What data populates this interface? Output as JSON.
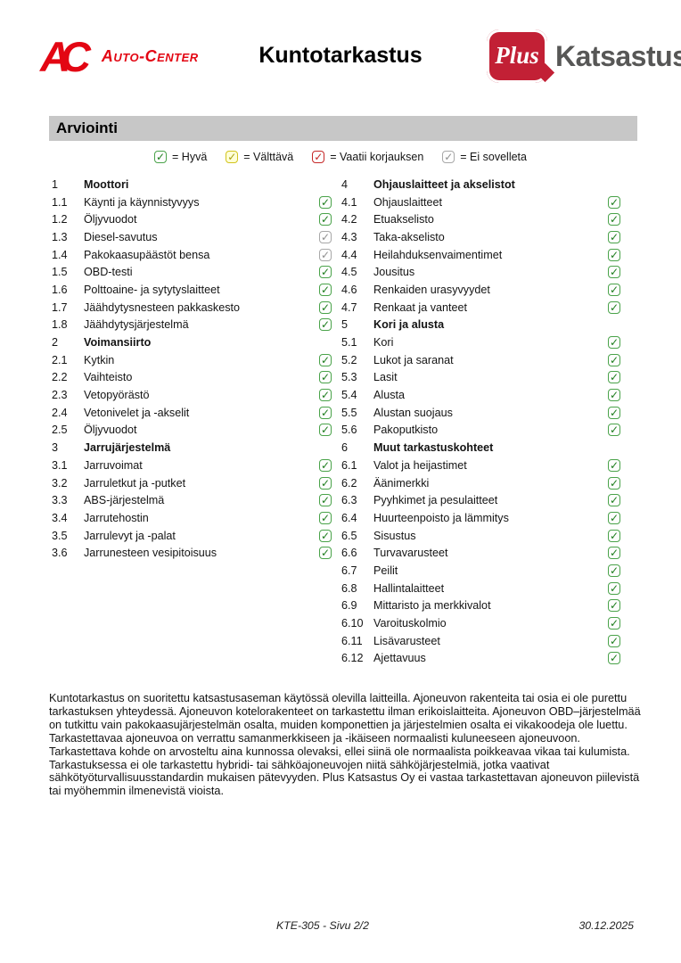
{
  "header": {
    "logo_ac": {
      "monogram": "AC",
      "name": "Auto-Center"
    },
    "title": "Kuntotarkastus",
    "logo_plus": {
      "plus": "Plus",
      "name": "Katsastus"
    }
  },
  "section_title": "Arviointi",
  "icons": {
    "check": "✓"
  },
  "legend": [
    {
      "status": "good",
      "label": "= Hyvä"
    },
    {
      "status": "fair",
      "label": "= Välttävä"
    },
    {
      "status": "repair",
      "label": "= Vaatii korjauksen"
    },
    {
      "status": "na",
      "label": "= Ei sovelleta"
    }
  ],
  "colors": {
    "brand_red": "#e30613",
    "plus_red": "#c22035",
    "katsastus_gray": "#575756",
    "section_bar": "#c7c7c7",
    "good": "#1e7d1e",
    "good_border": "#4aa34a",
    "fair": "#a8a012",
    "fair_border": "#d2c41d",
    "fair_bg": "#ffffd6",
    "repair": "#c62828",
    "na": "#8f8f8f",
    "na_border": "#a8a8a8"
  },
  "checklist": {
    "left": [
      {
        "num": "1",
        "label": "Moottori",
        "type": "section"
      },
      {
        "num": "1.1",
        "label": "Käynti ja käynnistyvyys",
        "status": "good"
      },
      {
        "num": "1.2",
        "label": "Öljyvuodot",
        "status": "good"
      },
      {
        "num": "1.3",
        "label": "Diesel-savutus",
        "status": "na"
      },
      {
        "num": "1.4",
        "label": "Pakokaasupäästöt bensa",
        "status": "na"
      },
      {
        "num": "1.5",
        "label": "OBD-testi",
        "status": "good"
      },
      {
        "num": "1.6",
        "label": "Polttoaine- ja sytytyslaitteet",
        "status": "good"
      },
      {
        "num": "1.7",
        "label": "Jäähdytysnesteen pakkaskesto",
        "status": "good"
      },
      {
        "num": "1.8",
        "label": "Jäähdytysjärjestelmä",
        "status": "good"
      },
      {
        "num": "2",
        "label": "Voimansiirto",
        "type": "section"
      },
      {
        "num": "2.1",
        "label": "Kytkin",
        "status": "good"
      },
      {
        "num": "2.2",
        "label": "Vaihteisto",
        "status": "good"
      },
      {
        "num": "2.3",
        "label": "Vetopyörästö",
        "status": "good"
      },
      {
        "num": "2.4",
        "label": "Vetonivelet ja -akselit",
        "status": "good"
      },
      {
        "num": "2.5",
        "label": "Öljyvuodot",
        "status": "good"
      },
      {
        "num": "3",
        "label": "Jarrujärjestelmä",
        "type": "section"
      },
      {
        "num": "3.1",
        "label": "Jarruvoimat",
        "status": "good"
      },
      {
        "num": "3.2",
        "label": "Jarruletkut ja -putket",
        "status": "good"
      },
      {
        "num": "3.3",
        "label": "ABS-järjestelmä",
        "status": "good"
      },
      {
        "num": "3.4",
        "label": "Jarrutehostin",
        "status": "good"
      },
      {
        "num": "3.5",
        "label": "Jarrulevyt ja -palat",
        "status": "good"
      },
      {
        "num": "3.6",
        "label": "Jarrunesteen vesipitoisuus",
        "status": "good"
      }
    ],
    "right": [
      {
        "num": "4",
        "label": "Ohjauslaitteet ja akselistot",
        "type": "section"
      },
      {
        "num": "4.1",
        "label": "Ohjauslaitteet",
        "status": "good"
      },
      {
        "num": "4.2",
        "label": "Etuakselisto",
        "status": "good"
      },
      {
        "num": "4.3",
        "label": "Taka-akselisto",
        "status": "good"
      },
      {
        "num": "4.4",
        "label": "Heilahduksenvaimentimet",
        "status": "good"
      },
      {
        "num": "4.5",
        "label": "Jousitus",
        "status": "good"
      },
      {
        "num": "4.6",
        "label": "Renkaiden urasyvyydet",
        "status": "good"
      },
      {
        "num": "4.7",
        "label": "Renkaat ja vanteet",
        "status": "good"
      },
      {
        "num": "5",
        "label": "Kori ja alusta",
        "type": "section"
      },
      {
        "num": "5.1",
        "label": "Kori",
        "status": "good"
      },
      {
        "num": "5.2",
        "label": "Lukot ja saranat",
        "status": "good"
      },
      {
        "num": "5.3",
        "label": "Lasit",
        "status": "good"
      },
      {
        "num": "5.4",
        "label": "Alusta",
        "status": "good"
      },
      {
        "num": "5.5",
        "label": "Alustan suojaus",
        "status": "good"
      },
      {
        "num": "5.6",
        "label": "Pakoputkisto",
        "status": "good"
      },
      {
        "num": "6",
        "label": "Muut tarkastuskohteet",
        "type": "section"
      },
      {
        "num": "6.1",
        "label": "Valot ja heijastimet",
        "status": "good"
      },
      {
        "num": "6.2",
        "label": "Äänimerkki",
        "status": "good"
      },
      {
        "num": "6.3",
        "label": "Pyyhkimet ja pesulaitteet",
        "status": "good"
      },
      {
        "num": "6.4",
        "label": "Huurteenpoisto ja lämmitys",
        "status": "good"
      },
      {
        "num": "6.5",
        "label": "Sisustus",
        "status": "good"
      },
      {
        "num": "6.6",
        "label": "Turvavarusteet",
        "status": "good"
      },
      {
        "num": "6.7",
        "label": "Peilit",
        "status": "good"
      },
      {
        "num": "6.8",
        "label": "Hallintalaitteet",
        "status": "good"
      },
      {
        "num": "6.9",
        "label": "Mittaristo ja merkkivalot",
        "status": "good"
      },
      {
        "num": "6.10",
        "label": "Varoituskolmio",
        "status": "good"
      },
      {
        "num": "6.11",
        "label": "Lisävarusteet",
        "status": "good"
      },
      {
        "num": "6.12",
        "label": "Ajettavuus",
        "status": "good"
      }
    ]
  },
  "disclaimer": "Kuntotarkastus on suoritettu katsastusaseman käytössä olevilla laitteilla. Ajoneuvon rakenteita tai osia ei ole purettu tarkastuksen yhteydessä. Ajoneuvon kotelorakenteet on tarkastettu ilman erikoislaitteita. Ajoneuvon OBD–järjestelmää on tutkittu vain pakokaasujärjestelmän osalta, muiden komponettien ja järjestelmien osalta ei vikakoodeja ole luettu. Tarkastettavaa ajoneuvoa on verrattu samanmerkkiseen ja -ikäiseen normaalisti kuluneeseen ajoneuvoon. Tarkastettava kohde on arvosteltu aina kunnossa olevaksi, ellei siinä ole normaalista poikkeavaa vikaa tai kulumista. Tarkastuksessa ei ole tarkastettu hybridi- tai sähköajoneuvojen niitä sähköjärjestelmiä, jotka vaativat sähkötyöturvallisuusstandardin mukaisen pätevyyden. Plus Katsastus Oy ei vastaa tarkastettavan ajoneuvon piilevistä tai myöhemmin ilmenevistä vioista.",
  "page_footer": {
    "page_info": "KTE-305 - Sivu 2/2",
    "date": "30.12.2025"
  }
}
